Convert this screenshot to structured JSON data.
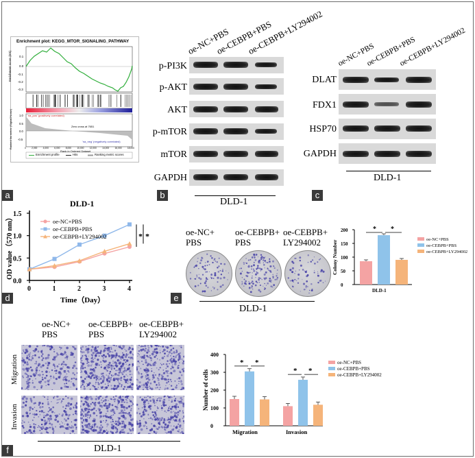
{
  "panels": {
    "a": "a",
    "b": "b",
    "c": "c",
    "d": "d",
    "e": "e",
    "f": "f"
  },
  "gsea": {
    "title": "Enrichment plot: KEGG_MTOR_SIGNALING_PATHWAY",
    "ylabel_top": "Enrichment score (ES)",
    "ylabel_bottom": "Ranked list metric (Signal2Noise)",
    "xlabel": "Rank in Ordered Dataset",
    "pos_label": "'na_pos' (positively correlated)",
    "neg_label": "'na_neg' (negatively correlated)",
    "zero_cross": "Zero cross at 7651",
    "legend": [
      "Enrichment profile",
      "Hits",
      "Ranking metric scores"
    ],
    "es_ticks": [
      "0.1",
      "0.0",
      "-0.1",
      "-0.2",
      "-0.3"
    ],
    "metric_ticks": [
      "1.0",
      "0.5",
      "0.0",
      "-0.5"
    ],
    "x_ticks": [
      "0",
      "2,000",
      "4,000",
      "6,000",
      "8,000",
      "10,000",
      "12,000",
      "14,000",
      "16,000",
      "18,000"
    ]
  },
  "wb_b": {
    "columns": [
      "oe-NC+PBS",
      "oe-CEBPB+PBS",
      "oe-CEBPB+LY294002"
    ],
    "rows": [
      "p-PI3K",
      "p-AKT",
      "AKT",
      "p-mTOR",
      "mTOR",
      "GAPDH"
    ],
    "cell_line": "DLD-1"
  },
  "wb_c": {
    "columns": [
      "oe-NC+PBS",
      "oe-CEBPB+PBS",
      "oe-CEBPB+LY294002"
    ],
    "rows": [
      "DLAT",
      "FDX1",
      "HSP70",
      "GAPDH"
    ],
    "cell_line": "DLD-1"
  },
  "chart_data": [
    {
      "type": "line",
      "title": "DLD-1",
      "xlabel": "Time（Day）",
      "ylabel": "OD value（570 nm）",
      "x": [
        0,
        1,
        2,
        3,
        4
      ],
      "xlim": [
        0,
        4
      ],
      "ylim": [
        0,
        1.5
      ],
      "x_ticks": [
        "0",
        "1",
        "2",
        "3",
        "4"
      ],
      "y_ticks": [
        "0.0",
        "0.5",
        "1.0",
        "1.5"
      ],
      "series": [
        {
          "name": "oe-NC+PBS",
          "values": [
            0.25,
            0.3,
            0.42,
            0.6,
            0.75
          ],
          "color": "#f4a3a3"
        },
        {
          "name": "oe-CEBPB+PBS",
          "values": [
            0.25,
            0.48,
            0.8,
            1.0,
            1.25
          ],
          "color": "#8fb8ea"
        },
        {
          "name": "oe-CEBPB+LY294002",
          "values": [
            0.25,
            0.33,
            0.44,
            0.65,
            0.82
          ],
          "color": "#f5b47a"
        }
      ],
      "annotations": [
        "*",
        "*"
      ]
    },
    {
      "type": "bar",
      "title": "",
      "xlabel": "DLD-1",
      "ylabel": "Colony Number",
      "categories": [
        "oe-NC+PBS",
        "oe-CEBPB+PBS",
        "oe-CEBPB+LY294002"
      ],
      "values": [
        85,
        180,
        90
      ],
      "ylim": [
        0,
        200
      ],
      "y_ticks": [
        "0",
        "50",
        "100",
        "150",
        "200"
      ],
      "colors": [
        "#f4a3a3",
        "#8fc3ea",
        "#f5b47a"
      ],
      "annotations": [
        "*",
        "*"
      ]
    },
    {
      "type": "bar",
      "title": "",
      "xlabel": "",
      "ylabel": "Number of cells",
      "categories": [
        "Migration",
        "Invasion"
      ],
      "series": [
        {
          "name": "oe-NC+PBS",
          "values": [
            150,
            110
          ],
          "color": "#f4a3a3"
        },
        {
          "name": "oe-CEBPB+PBS",
          "values": [
            305,
            258
          ],
          "color": "#8fc3ea"
        },
        {
          "name": "oe-CEBPB+LY294002",
          "values": [
            148,
            118
          ],
          "color": "#f5b47a"
        }
      ],
      "ylim": [
        0,
        400
      ],
      "y_ticks": [
        "0",
        "100",
        "200",
        "300",
        "400"
      ],
      "annotations": [
        "*",
        "*",
        "*",
        "*"
      ]
    }
  ],
  "colony": {
    "labels": [
      [
        "oe-NC+",
        "PBS"
      ],
      [
        "oe-CEBPB+",
        "PBS"
      ],
      [
        "oe-CEBPB+",
        "LY294002"
      ]
    ],
    "cell_line": "DLD-1"
  },
  "transwell": {
    "labels": [
      [
        "oe-NC+",
        "PBS"
      ],
      [
        "oe-CEBPB+",
        "PBS"
      ],
      [
        "oe-CEBPB+",
        "LY294002"
      ]
    ],
    "rows": [
      "Migration",
      "Invasion"
    ],
    "cell_line": "DLD-1"
  },
  "colors": {
    "pink": "#f4a3a3",
    "blue": "#8fc3ea",
    "orange": "#f5b47a",
    "stain": "#4b46a8"
  }
}
